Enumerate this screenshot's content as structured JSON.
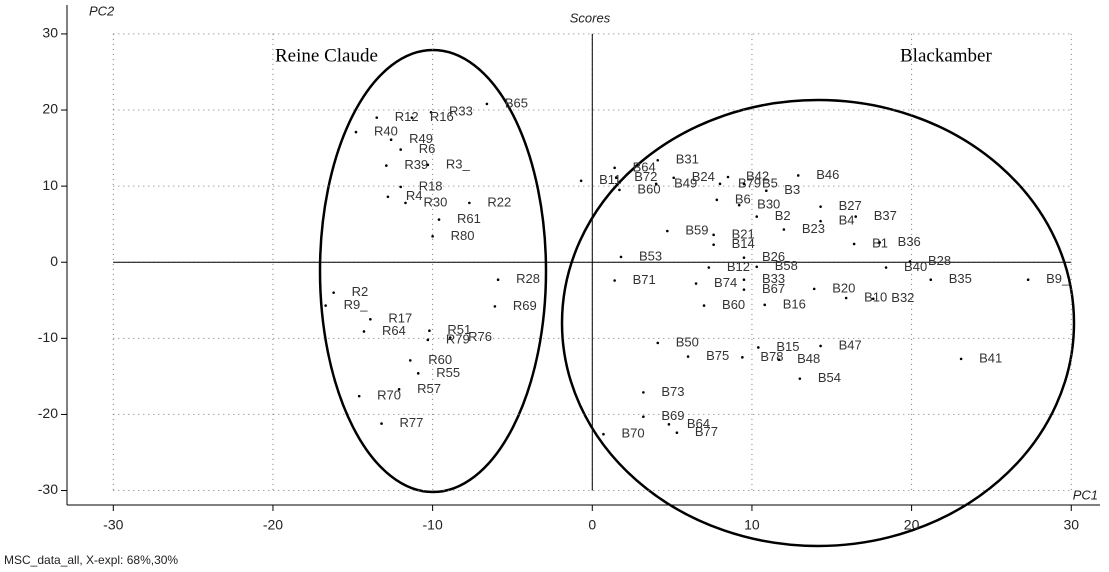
{
  "chart_data": {
    "type": "scatter",
    "title": "Scores",
    "x_label": "PC1",
    "y_label": "PC2",
    "annotations": [
      "Reine Claude",
      "Blackamber"
    ],
    "footer": "MSC_data_all, X-expl: 68%,30%",
    "xlim": [
      -32.9,
      31.8
    ],
    "ylim": [
      -31.9,
      33.8
    ],
    "xticks": [
      -30,
      -20,
      -10,
      0,
      10,
      20,
      30
    ],
    "yticks": [
      -30,
      -20,
      -10,
      0,
      10,
      20,
      30
    ],
    "grid": true,
    "color": "#000000",
    "labels": [
      "B65",
      "R33",
      "R12",
      "R16",
      "R40",
      "R49",
      "R6",
      "R39",
      "R3_",
      "R18",
      "R30",
      "R22",
      "R4",
      "R61",
      "R80",
      "R2",
      "R9_",
      "R17",
      "R64",
      "R51",
      "R79",
      "R76",
      "R69",
      "R28",
      "R60",
      "R55",
      "R57",
      "R70",
      "R77",
      "B11",
      "B64",
      "B31",
      "B72",
      "B60",
      "B49",
      "B24",
      "B42",
      "B79",
      "B5",
      "B3",
      "B46",
      "B6",
      "B30",
      "B2",
      "B23",
      "B27",
      "B4",
      "B37",
      "B59",
      "B21",
      "B14",
      "B1",
      "B36",
      "B53",
      "B26",
      "B12",
      "B58",
      "B28",
      "B40",
      "B71",
      "B74",
      "B33",
      "B67",
      "B20",
      "B35",
      "B9_",
      "B10",
      "B32",
      "B60",
      "B16",
      "B50",
      "B75",
      "B15",
      "B78",
      "B48",
      "B47",
      "B54",
      "B41",
      "B73",
      "B69",
      "B64",
      "B77",
      "B70"
    ],
    "x": [
      -6.6,
      -10.1,
      -13.5,
      -11.3,
      -14.8,
      -12.6,
      -12.0,
      -12.9,
      -10.3,
      -12.0,
      -11.7,
      -7.7,
      -12.8,
      -9.6,
      -10.0,
      -16.2,
      -16.7,
      -13.9,
      -14.3,
      -10.2,
      -10.3,
      -8.9,
      -6.1,
      -5.9,
      -11.4,
      -10.9,
      -12.1,
      -14.6,
      -13.2,
      -0.7,
      1.4,
      4.1,
      1.5,
      1.7,
      4.0,
      5.1,
      8.5,
      8.0,
      9.5,
      10.9,
      12.9,
      7.8,
      9.2,
      10.3,
      12.0,
      14.3,
      14.3,
      16.5,
      4.7,
      7.6,
      7.6,
      16.4,
      18.0,
      1.8,
      9.5,
      7.3,
      10.3,
      19.9,
      18.4,
      1.4,
      6.5,
      9.5,
      9.5,
      13.9,
      21.2,
      27.3,
      15.9,
      17.6,
      7.0,
      10.8,
      4.1,
      6.0,
      10.4,
      9.4,
      11.7,
      14.3,
      13.0,
      23.1,
      3.2,
      3.2,
      4.8,
      5.3,
      0.7
    ],
    "values": [
      20.8,
      19.7,
      19.0,
      19.0,
      17.1,
      16.1,
      14.8,
      12.7,
      12.8,
      9.9,
      7.8,
      7.8,
      8.6,
      5.6,
      3.4,
      -4.0,
      -5.7,
      -7.5,
      -9.1,
      -9.0,
      -10.2,
      -9.9,
      -5.8,
      -2.3,
      -12.9,
      -14.6,
      -16.7,
      -17.6,
      -21.2,
      10.7,
      12.4,
      13.4,
      11.1,
      9.5,
      10.3,
      11.1,
      11.2,
      10.3,
      10.3,
      9.4,
      11.4,
      8.2,
      7.5,
      6.0,
      4.3,
      7.3,
      5.4,
      6.0,
      4.1,
      3.6,
      2.3,
      2.4,
      2.6,
      0.7,
      0.6,
      -0.7,
      -0.6,
      0.1,
      -0.7,
      -2.4,
      -2.8,
      -2.3,
      -3.6,
      -3.5,
      -2.3,
      -2.3,
      -4.7,
      -4.8,
      -5.7,
      -5.6,
      -10.6,
      -12.4,
      -11.2,
      -12.5,
      -12.8,
      -11.0,
      -15.3,
      -12.7,
      -17.1,
      -20.3,
      -21.3,
      -22.4,
      -22.6
    ]
  }
}
